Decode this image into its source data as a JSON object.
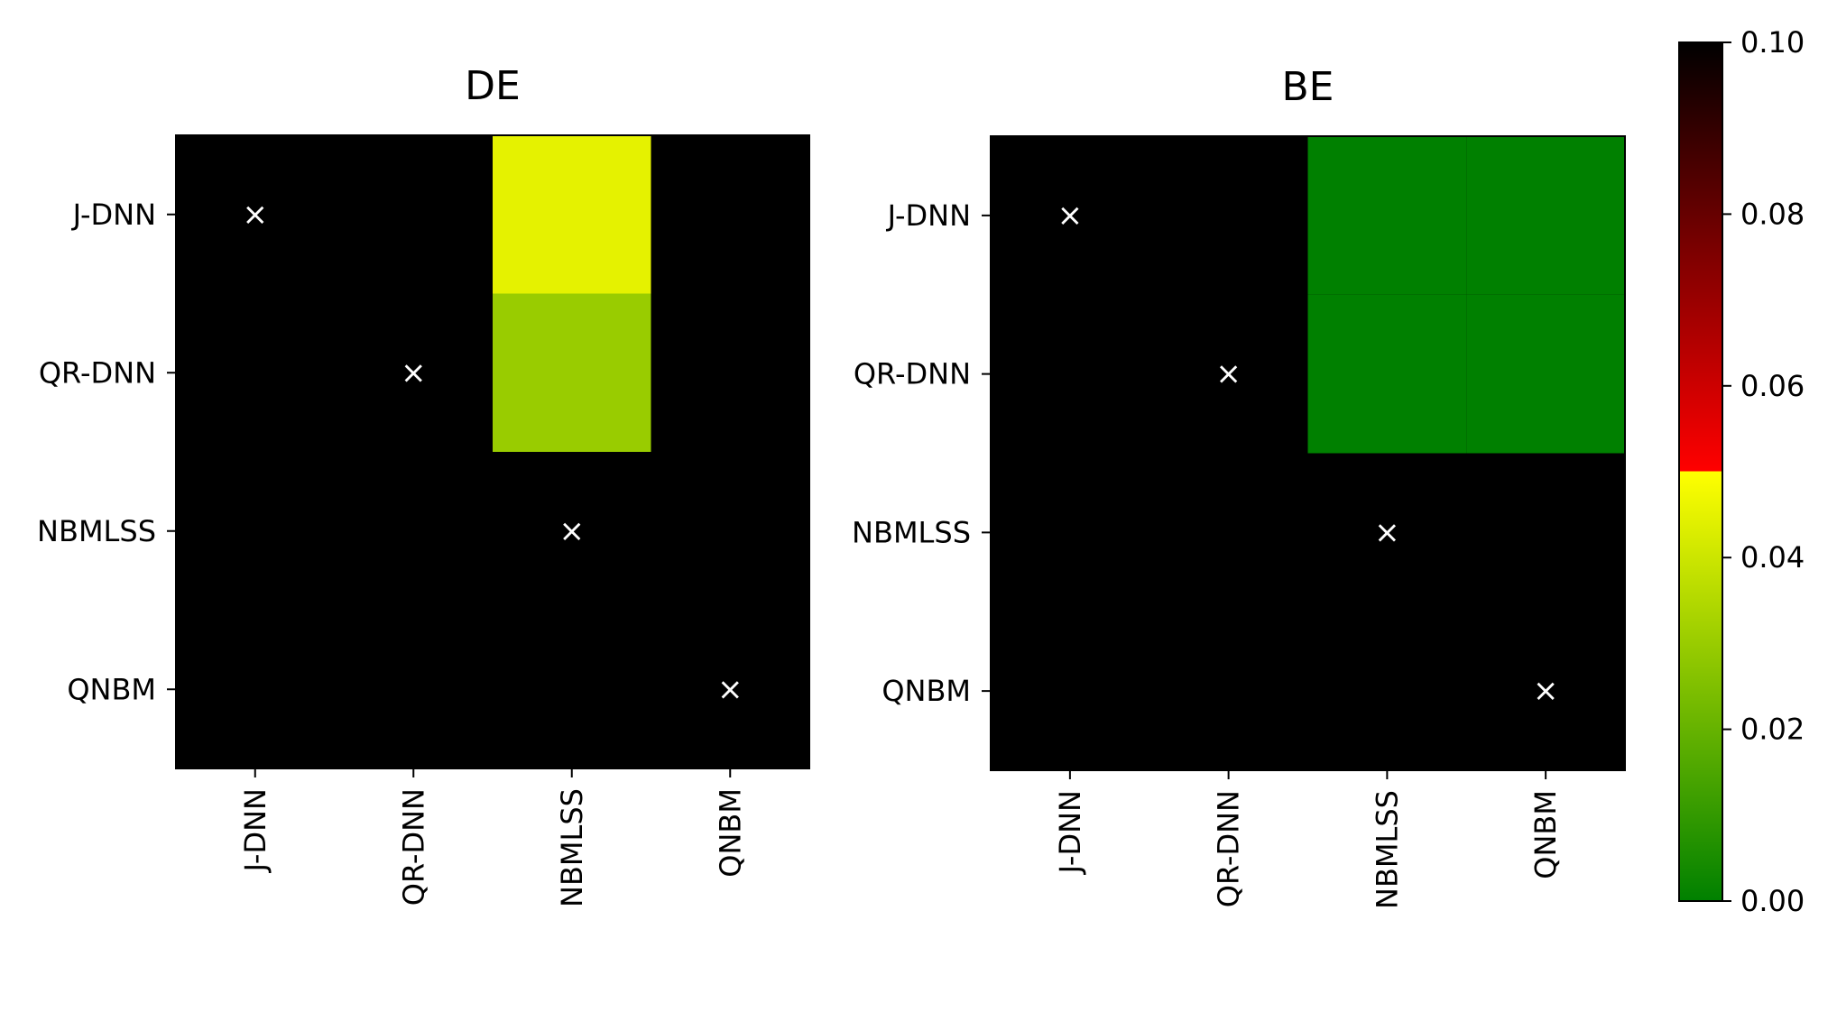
{
  "chart_data": [
    {
      "type": "heatmap",
      "title": "DE",
      "rows": [
        "J-DNN",
        "QR-DNN",
        "NBMLSS",
        "QNBM"
      ],
      "columns": [
        "J-DNN",
        "QR-DNN",
        "NBMLSS",
        "QNBM"
      ],
      "values": [
        [
          null,
          null,
          0.045,
          null
        ],
        [
          null,
          null,
          0.03,
          null
        ],
        [
          null,
          null,
          null,
          null
        ],
        [
          null,
          null,
          null,
          null
        ]
      ],
      "diagonal_marker": "×"
    },
    {
      "type": "heatmap",
      "title": "BE",
      "rows": [
        "J-DNN",
        "QR-DNN",
        "NBMLSS",
        "QNBM"
      ],
      "columns": [
        "J-DNN",
        "QR-DNN",
        "NBMLSS",
        "QNBM"
      ],
      "values": [
        [
          null,
          null,
          0.0,
          0.0
        ],
        [
          null,
          null,
          0.0,
          0.0
        ],
        [
          null,
          null,
          null,
          null
        ],
        [
          null,
          null,
          null,
          null
        ]
      ],
      "diagonal_marker": "×"
    }
  ],
  "colorbar": {
    "range": [
      0.0,
      0.1
    ],
    "ticks": [
      "0.00",
      "0.02",
      "0.04",
      "0.06",
      "0.08",
      "0.10"
    ],
    "stops": [
      {
        "value": 0.0,
        "color": "#008000"
      },
      {
        "value": 0.05,
        "color": "#ffff00"
      },
      {
        "value": 0.0501,
        "color": "#ff0000"
      },
      {
        "value": 0.1,
        "color": "#000000"
      }
    ]
  },
  "colors": {
    "missing": "#000000",
    "marker": "#ffffff"
  }
}
